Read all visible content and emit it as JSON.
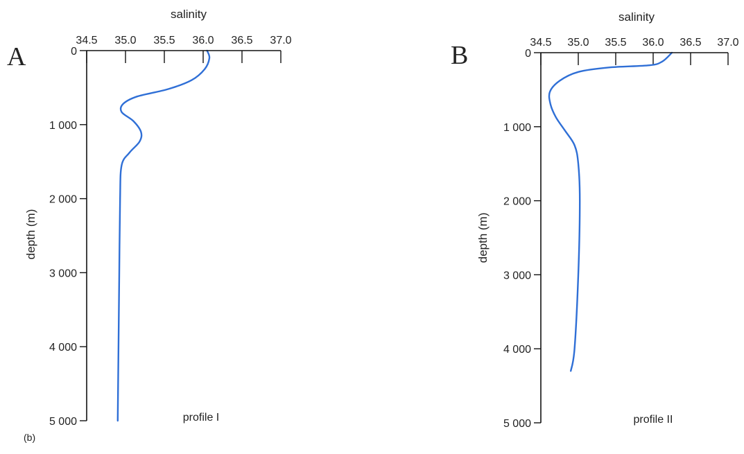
{
  "figure": {
    "sub_label": "(b)"
  },
  "chart_data": [
    {
      "type": "line",
      "panel_label": "A",
      "profile_label": "profile I",
      "xlabel": "salinity",
      "ylabel": "depth (m)",
      "xlim": [
        34.5,
        37.0
      ],
      "ylim": [
        0,
        5000
      ],
      "y_inverted": true,
      "x_axis_position": "top",
      "x_ticks": [
        34.5,
        35.0,
        35.5,
        36.0,
        36.5,
        37.0
      ],
      "x_tick_labels": [
        "34.5",
        "35.0",
        "35.5",
        "36.0",
        "36.5",
        "37.0"
      ],
      "y_ticks": [
        0,
        1000,
        2000,
        3000,
        4000,
        5000
      ],
      "y_tick_labels": [
        "0",
        "1 000",
        "2 000",
        "3 000",
        "4 000",
        "5 000"
      ],
      "grid": false,
      "series": [
        {
          "color": "#2f6fd6",
          "points": [
            [
              36.05,
              0
            ],
            [
              36.08,
              100
            ],
            [
              36.02,
              250
            ],
            [
              35.85,
              400
            ],
            [
              35.55,
              520
            ],
            [
              35.15,
              620
            ],
            [
              34.97,
              720
            ],
            [
              34.95,
              830
            ],
            [
              35.1,
              950
            ],
            [
              35.2,
              1100
            ],
            [
              35.18,
              1230
            ],
            [
              35.05,
              1380
            ],
            [
              34.95,
              1550
            ],
            [
              34.93,
              2000
            ],
            [
              34.92,
              3000
            ],
            [
              34.91,
              4000
            ],
            [
              34.9,
              5000
            ]
          ]
        }
      ]
    },
    {
      "type": "line",
      "panel_label": "B",
      "profile_label": "profile II",
      "xlabel": "salinity",
      "ylabel": "depth (m)",
      "xlim": [
        34.5,
        37.0
      ],
      "ylim": [
        0,
        5000
      ],
      "y_inverted": true,
      "x_axis_position": "top",
      "x_ticks": [
        34.5,
        35.0,
        35.5,
        36.0,
        36.5,
        37.0
      ],
      "x_tick_labels": [
        "34.5",
        "35.0",
        "35.5",
        "36.0",
        "36.5",
        "37.0"
      ],
      "y_ticks": [
        0,
        1000,
        2000,
        3000,
        4000,
        5000
      ],
      "y_tick_labels": [
        "0",
        "1 000",
        "2 000",
        "3 000",
        "4 000",
        "5 000"
      ],
      "grid": false,
      "series": [
        {
          "color": "#2f6fd6",
          "points": [
            [
              36.25,
              0
            ],
            [
              36.12,
              120
            ],
            [
              35.95,
              170
            ],
            [
              35.4,
              200
            ],
            [
              35.0,
              260
            ],
            [
              34.75,
              380
            ],
            [
              34.62,
              530
            ],
            [
              34.63,
              700
            ],
            [
              34.7,
              870
            ],
            [
              34.82,
              1050
            ],
            [
              34.95,
              1250
            ],
            [
              35.0,
              1500
            ],
            [
              35.02,
              2000
            ],
            [
              35.0,
              3000
            ],
            [
              34.95,
              4000
            ],
            [
              34.9,
              4300
            ]
          ]
        }
      ]
    }
  ]
}
